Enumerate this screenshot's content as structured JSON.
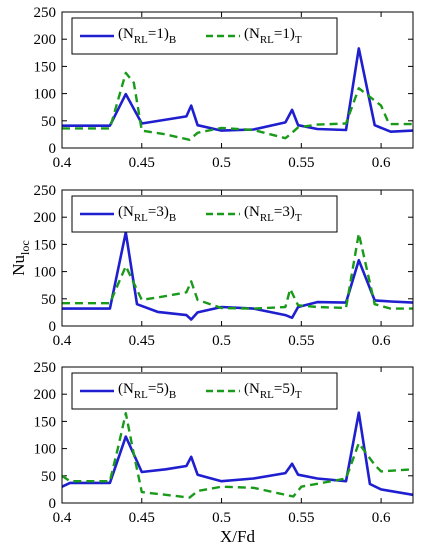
{
  "chart_data": {
    "type": "line",
    "xlabel": "X/Fd",
    "ylabel": "Nu",
    "ylabel_sub": "loc",
    "xlim": [
      0.4,
      0.62
    ],
    "ylim": [
      0,
      250
    ],
    "xticks": [
      0.4,
      0.45,
      0.5,
      0.55,
      0.6
    ],
    "xtick_labels": [
      "0.4",
      "0.45",
      "0.5",
      "0.55",
      "0.6"
    ],
    "yticks": [
      0,
      50,
      100,
      150,
      200,
      250
    ],
    "ytick_labels": [
      "0",
      "50",
      "100",
      "150",
      "200",
      "250"
    ],
    "colors": {
      "B": "#1f1fcf",
      "T": "#1a9a1a"
    },
    "panels": [
      {
        "legend_position": "top-left",
        "legend": [
          {
            "key": "B",
            "base": "(N",
            "sub": "RL",
            "eq": "=1)",
            "suffix": "B",
            "style": "solid"
          },
          {
            "key": "T",
            "base": "(N",
            "sub": "RL",
            "eq": "=1)",
            "suffix": "T",
            "style": "dashed"
          }
        ],
        "series": [
          {
            "key": "B",
            "x": [
              0.4,
              0.43,
              0.44,
              0.45,
              0.478,
              0.481,
              0.485,
              0.5,
              0.52,
              0.54,
              0.5442,
              0.548,
              0.56,
              0.578,
              0.586,
              0.596,
              0.606,
              0.62
            ],
            "y": [
              41,
              41,
              99,
              45,
              58,
              78,
              42,
              32,
              34,
              47,
              70,
              42,
              35,
              33,
              183,
              42,
              30,
              32
            ]
          },
          {
            "key": "T",
            "x": [
              0.4,
              0.43,
              0.44,
              0.445,
              0.45,
              0.465,
              0.48,
              0.485,
              0.5,
              0.52,
              0.54,
              0.543,
              0.548,
              0.56,
              0.578,
              0.586,
              0.6,
              0.605,
              0.62
            ],
            "y": [
              36,
              36,
              138,
              120,
              32,
              25,
              15,
              28,
              37,
              33,
              18,
              25,
              38,
              43,
              45,
              110,
              78,
              44,
              44
            ]
          }
        ]
      },
      {
        "legend_position": "top-left",
        "legend": [
          {
            "key": "B",
            "base": "(N",
            "sub": "RL",
            "eq": "=3)",
            "suffix": "B",
            "style": "solid"
          },
          {
            "key": "T",
            "base": "(N",
            "sub": "RL",
            "eq": "=3)",
            "suffix": "T",
            "style": "dashed"
          }
        ],
        "series": [
          {
            "key": "B",
            "x": [
              0.4,
              0.43,
              0.44,
              0.447,
              0.46,
              0.478,
              0.481,
              0.485,
              0.5,
              0.52,
              0.54,
              0.5442,
              0.548,
              0.56,
              0.578,
              0.586,
              0.596,
              0.606,
              0.62
            ],
            "y": [
              32,
              32,
              172,
              40,
              26,
              20,
              12,
              25,
              35,
              32,
              20,
              15,
              35,
              44,
              43,
              121,
              47,
              45,
              43
            ]
          },
          {
            "key": "T",
            "x": [
              0.4,
              0.43,
              0.44,
              0.45,
              0.465,
              0.478,
              0.481,
              0.485,
              0.5,
              0.52,
              0.54,
              0.543,
              0.548,
              0.56,
              0.578,
              0.586,
              0.596,
              0.606,
              0.62
            ],
            "y": [
              42,
              42,
              110,
              48,
              55,
              62,
              82,
              48,
              33,
              32,
              35,
              68,
              38,
              35,
              33,
              170,
              40,
              32,
              32
            ]
          }
        ]
      },
      {
        "legend_position": "top-left",
        "legend": [
          {
            "key": "B",
            "base": "(N",
            "sub": "RL",
            "eq": "=5)",
            "suffix": "B",
            "style": "solid"
          },
          {
            "key": "T",
            "base": "(N",
            "sub": "RL",
            "eq": "=5)",
            "suffix": "T",
            "style": "dashed"
          }
        ],
        "series": [
          {
            "key": "B",
            "x": [
              0.4,
              0.405,
              0.43,
              0.44,
              0.45,
              0.465,
              0.478,
              0.481,
              0.485,
              0.5,
              0.52,
              0.54,
              0.5442,
              0.548,
              0.56,
              0.578,
              0.586,
              0.593,
              0.6,
              0.62
            ],
            "y": [
              30,
              37,
              37,
              122,
              57,
              62,
              68,
              85,
              52,
              40,
              45,
              55,
              72,
              52,
              45,
              40,
              166,
              35,
              25,
              15
            ]
          },
          {
            "key": "T",
            "x": [
              0.4,
              0.405,
              0.43,
              0.435,
              0.44,
              0.445,
              0.45,
              0.465,
              0.48,
              0.485,
              0.5,
              0.52,
              0.54,
              0.545,
              0.55,
              0.578,
              0.586,
              0.596,
              0.6,
              0.62
            ],
            "y": [
              50,
              40,
              40,
              100,
              165,
              90,
              20,
              15,
              10,
              22,
              30,
              28,
              15,
              12,
              30,
              45,
              110,
              70,
              58,
              62
            ]
          }
        ]
      }
    ]
  }
}
